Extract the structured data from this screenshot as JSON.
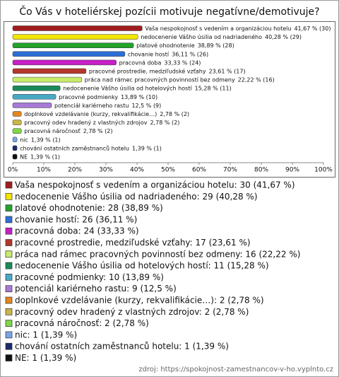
{
  "chart_data": {
    "type": "bar",
    "orientation": "horizontal",
    "title": "Čo Vás v hoteliérskej pozícii motivuje negatívne/demotivuje?",
    "categories": [
      "Vaša nespokojnosť s vedením a organizáciou hotelu",
      "nedocenenie Vášho úsilia od nadriadeného",
      "platové ohodnotenie",
      "chovanie hostí",
      "pracovná doba",
      "pracovné prostredie, medziľudské vzťahy",
      "práca nad rámec pracovných povinností bez odmeny",
      "nedocenenie Vášho úsilia od hotelových hostí",
      "pracovné podmienky",
      "potenciál kariérneho rastu",
      "doplnkové vzdelávanie (kurzy, rekvalifikácie…)",
      "pracovný odev hradený z vlastných zdrojov",
      "pracovná náročnosť",
      "nic",
      "chování ostatních zaměstnanců hotelu",
      "NE"
    ],
    "values": [
      41.67,
      40.28,
      38.89,
      36.11,
      33.33,
      23.61,
      22.22,
      15.28,
      13.89,
      12.5,
      2.78,
      2.78,
      2.78,
      1.39,
      1.39,
      1.39
    ],
    "value_labels": [
      "41,67 % (30)",
      "40,28 % (29)",
      "38,89 % (28)",
      "36,11 % (26)",
      "33,33 % (24)",
      "23,61 % (17)",
      "22,22 % (16)",
      "15,28 % (11)",
      "13,89 % (10)",
      "12,5 % (9)",
      "2,78 % (2)",
      "2,78 % (2)",
      "2,78 % (2)",
      "1,39 % (1)",
      "1,39 % (1)",
      "1,39 % (1)"
    ],
    "legend": [
      "Vaša nespokojnosť s vedením a organizáciou hotelu: 30 (41,67 %)",
      "nedocenenie Vášho úsilia od nadriadeného: 29 (40,28 %)",
      "platové ohodnotenie: 28 (38,89 %)",
      "chovanie hostí: 26 (36,11 %)",
      "pracovná doba: 24 (33,33 %)",
      "pracovné prostredie, medziľudské vzťahy: 17 (23,61 %)",
      "práca nad rámec pracovných povinností bez odmeny: 16 (22,22 %)",
      "nedocenenie Vášho úsilia od hotelových hostí: 11 (15,28 %)",
      "pracovné podmienky: 10 (13,89 %)",
      "potenciál kariérneho rastu: 9 (12,5 %)",
      "doplnkové vzdelávanie (kurzy, rekvalifikácie…): 2 (2,78 %)",
      "pracovný odev hradený z vlastných zdrojov: 2 (2,78 %)",
      "pracovná náročnosť: 2 (2,78 %)",
      "nic: 1 (1,39 %)",
      "chování ostatních zaměstnanců hotelu: 1 (1,39 %)",
      "NE: 1 (1,39 %)"
    ],
    "colors": [
      "#a11d1d",
      "#f2e600",
      "#22a32a",
      "#2b6fd6",
      "#c61fc6",
      "#b4372c",
      "#c8ec6a",
      "#1b8a5a",
      "#48a9c5",
      "#a77ad6",
      "#e3871f",
      "#c9b54a",
      "#7fd64a",
      "#7aa5e6",
      "#1d2a6b",
      "#111111"
    ],
    "xlim": [
      0,
      100
    ],
    "xticks": [
      {
        "value": 0,
        "label": "0%"
      },
      {
        "value": 10,
        "label": "10%"
      },
      {
        "value": 20,
        "label": "20%"
      },
      {
        "value": 30,
        "label": "30%"
      },
      {
        "value": 40,
        "label": "40%"
      },
      {
        "value": 50,
        "label": "50%"
      },
      {
        "value": 60,
        "label": "60%"
      },
      {
        "value": 70,
        "label": "70%"
      },
      {
        "value": 80,
        "label": "80%"
      },
      {
        "value": 90,
        "label": "90%"
      },
      {
        "value": 100,
        "label": "100%"
      }
    ],
    "source": "zdroj: https://spokojnost-zamestnancov-v-ho.vyplnto.cz"
  }
}
